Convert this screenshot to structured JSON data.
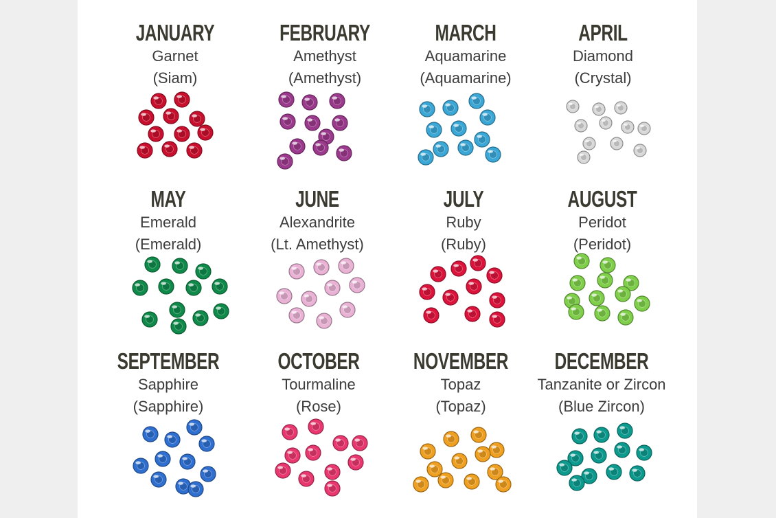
{
  "birthstones": [
    {
      "month": "JANUARY",
      "stone": "Garnet",
      "crystal": "(Siam)",
      "color": "#c8102e"
    },
    {
      "month": "FEBRUARY",
      "stone": "Amethyst",
      "crystal": "(Amethyst)",
      "color": "#9b3a8c"
    },
    {
      "month": "MARCH",
      "stone": "Aquamarine",
      "crystal": "(Aquamarine)",
      "color": "#3aa7d6"
    },
    {
      "month": "APRIL",
      "stone": "Diamond",
      "crystal": "(Crystal)",
      "color": "#d8d8d8"
    },
    {
      "month": "MAY",
      "stone": "Emerald",
      "crystal": "(Emerald)",
      "color": "#0f8a4a"
    },
    {
      "month": "JUNE",
      "stone": "Alexandrite",
      "crystal": "(Lt. Amethyst)",
      "color": "#eab3d6"
    },
    {
      "month": "JULY",
      "stone": "Ruby",
      "crystal": "(Ruby)",
      "color": "#dc143c"
    },
    {
      "month": "AUGUST",
      "stone": "Peridot",
      "crystal": "(Peridot)",
      "color": "#7fcf4a"
    },
    {
      "month": "SEPTEMBER",
      "stone": "Sapphire",
      "crystal": "(Sapphire)",
      "color": "#2f6fcf"
    },
    {
      "month": "OCTOBER",
      "stone": "Tourmaline",
      "crystal": "(Rose)",
      "color": "#e8386f"
    },
    {
      "month": "NOVEMBER",
      "stone": "Topaz",
      "crystal": "(Topaz)",
      "color": "#f0a020"
    },
    {
      "month": "DECEMBER",
      "stone": "Tanzanite or Zircon",
      "crystal": "(Blue Zircon)",
      "color": "#0d9a8e"
    }
  ]
}
